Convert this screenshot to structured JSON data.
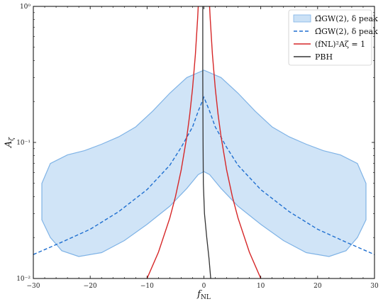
{
  "chart_data": {
    "type": "line",
    "xlabel": "f_NL",
    "ylabel": "A_ζ",
    "xlim": [
      -30,
      30
    ],
    "ylim": [
      0.01,
      1
    ],
    "yscale": "log",
    "grid": false,
    "legend_position": "top-right",
    "x_ticks": [
      -30,
      -20,
      -10,
      0,
      10,
      20,
      30
    ],
    "x_tick_labels": [
      "−30",
      "−20",
      "−10",
      "0",
      "10",
      "20",
      "30"
    ],
    "y_ticks": [
      0.01,
      0.1,
      1
    ],
    "y_tick_labels": [
      "10⁻²",
      "10⁻¹",
      "10⁰"
    ],
    "series": [
      {
        "name": "Ω̄GW(2), δ peak",
        "kind": "band",
        "color": "#a9cdf0",
        "upper": [
          {
            "x": -28.5,
            "y": 0.05
          },
          {
            "x": -27,
            "y": 0.07
          },
          {
            "x": -24,
            "y": 0.081
          },
          {
            "x": -21,
            "y": 0.087
          },
          {
            "x": -18,
            "y": 0.097
          },
          {
            "x": -15,
            "y": 0.11
          },
          {
            "x": -12,
            "y": 0.13
          },
          {
            "x": -9,
            "y": 0.17
          },
          {
            "x": -6,
            "y": 0.23
          },
          {
            "x": -3,
            "y": 0.3
          },
          {
            "x": 0,
            "y": 0.34
          },
          {
            "x": 3,
            "y": 0.3
          },
          {
            "x": 6,
            "y": 0.23
          },
          {
            "x": 9,
            "y": 0.17
          },
          {
            "x": 12,
            "y": 0.13
          },
          {
            "x": 15,
            "y": 0.11
          },
          {
            "x": 18,
            "y": 0.097
          },
          {
            "x": 21,
            "y": 0.087
          },
          {
            "x": 24,
            "y": 0.081
          },
          {
            "x": 27,
            "y": 0.07
          },
          {
            "x": 28.5,
            "y": 0.05
          }
        ],
        "lower": [
          {
            "x": -28.5,
            "y": 0.027
          },
          {
            "x": -27,
            "y": 0.02
          },
          {
            "x": -25,
            "y": 0.016
          },
          {
            "x": -22,
            "y": 0.0145
          },
          {
            "x": -18,
            "y": 0.0155
          },
          {
            "x": -14,
            "y": 0.019
          },
          {
            "x": -10,
            "y": 0.025
          },
          {
            "x": -6,
            "y": 0.034
          },
          {
            "x": -3,
            "y": 0.046
          },
          {
            "x": -1,
            "y": 0.058
          },
          {
            "x": 0,
            "y": 0.061
          },
          {
            "x": 1,
            "y": 0.058
          },
          {
            "x": 3,
            "y": 0.046
          },
          {
            "x": 6,
            "y": 0.034
          },
          {
            "x": 10,
            "y": 0.025
          },
          {
            "x": 14,
            "y": 0.019
          },
          {
            "x": 18,
            "y": 0.0155
          },
          {
            "x": 22,
            "y": 0.0145
          },
          {
            "x": 25,
            "y": 0.016
          },
          {
            "x": 27,
            "y": 0.02
          },
          {
            "x": 28.5,
            "y": 0.027
          }
        ]
      },
      {
        "name": "Ω̄GW(2), δ peak",
        "kind": "dashed",
        "color": "#1f6fd0",
        "points": [
          {
            "x": -30,
            "y": 0.015
          },
          {
            "x": -25,
            "y": 0.0185
          },
          {
            "x": -20,
            "y": 0.023
          },
          {
            "x": -15,
            "y": 0.031
          },
          {
            "x": -10,
            "y": 0.045
          },
          {
            "x": -6,
            "y": 0.068
          },
          {
            "x": -4,
            "y": 0.092
          },
          {
            "x": -2,
            "y": 0.13
          },
          {
            "x": -1,
            "y": 0.17
          },
          {
            "x": 0,
            "y": 0.215
          },
          {
            "x": 1,
            "y": 0.17
          },
          {
            "x": 2,
            "y": 0.13
          },
          {
            "x": 4,
            "y": 0.092
          },
          {
            "x": 6,
            "y": 0.068
          },
          {
            "x": 10,
            "y": 0.045
          },
          {
            "x": 15,
            "y": 0.031
          },
          {
            "x": 20,
            "y": 0.023
          },
          {
            "x": 25,
            "y": 0.0185
          },
          {
            "x": 30,
            "y": 0.015
          }
        ]
      },
      {
        "name": "(fNL)²Aζ = 1",
        "kind": "line",
        "color": "#d62728",
        "points_left": [
          {
            "x": -10,
            "y": 0.01
          },
          {
            "x": -8,
            "y": 0.0156
          },
          {
            "x": -6,
            "y": 0.0278
          },
          {
            "x": -5,
            "y": 0.04
          },
          {
            "x": -4,
            "y": 0.0625
          },
          {
            "x": -3,
            "y": 0.111
          },
          {
            "x": -2.5,
            "y": 0.16
          },
          {
            "x": -2,
            "y": 0.25
          },
          {
            "x": -1.5,
            "y": 0.444
          },
          {
            "x": -1.1,
            "y": 0.826
          },
          {
            "x": -1.0,
            "y": 1.0
          }
        ],
        "points_right": [
          {
            "x": 1.0,
            "y": 1.0
          },
          {
            "x": 1.1,
            "y": 0.826
          },
          {
            "x": 1.5,
            "y": 0.444
          },
          {
            "x": 2,
            "y": 0.25
          },
          {
            "x": 2.5,
            "y": 0.16
          },
          {
            "x": 3,
            "y": 0.111
          },
          {
            "x": 4,
            "y": 0.0625
          },
          {
            "x": 5,
            "y": 0.04
          },
          {
            "x": 6,
            "y": 0.0278
          },
          {
            "x": 8,
            "y": 0.0156
          },
          {
            "x": 10,
            "y": 0.01
          }
        ]
      },
      {
        "name": "PBH",
        "kind": "line",
        "color": "#333333",
        "points": [
          {
            "x": -0.2,
            "y": 1.0
          },
          {
            "x": -0.2,
            "y": 0.3
          },
          {
            "x": -0.15,
            "y": 0.1
          },
          {
            "x": -0.1,
            "y": 0.05
          },
          {
            "x": 0.1,
            "y": 0.03
          },
          {
            "x": 0.5,
            "y": 0.02
          },
          {
            "x": 0.9,
            "y": 0.014
          },
          {
            "x": 1.2,
            "y": 0.01
          }
        ]
      }
    ]
  }
}
